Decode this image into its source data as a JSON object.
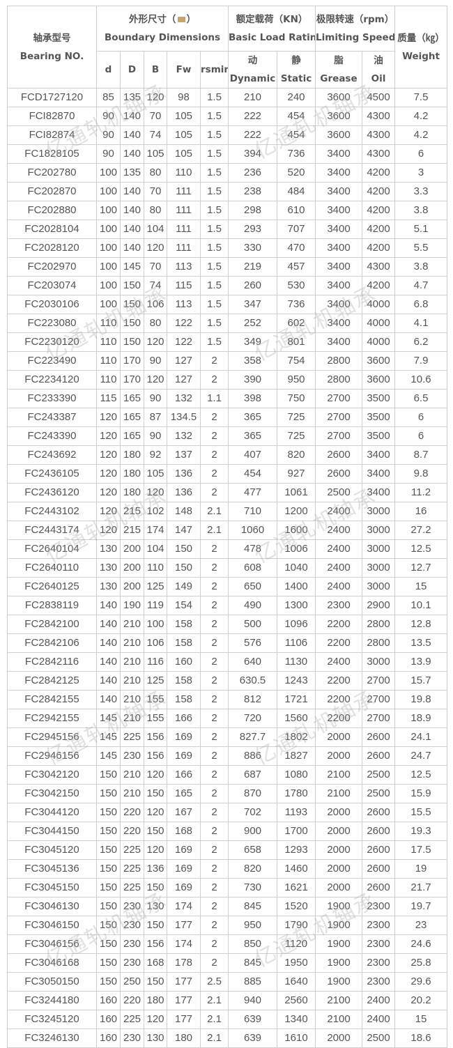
{
  "header": {
    "bearing_cn": "轴承型号",
    "bearing_en": "Bearing NO.",
    "dims_cn": "外形尺寸（",
    "dims_unit": "mm",
    "dims_close": "）",
    "dims_en": "Boundary Dimensions",
    "load_cn": "额定载荷（KN）",
    "load_en": "Basic Load Rating",
    "speed_cn": "极限转速（rpm）",
    "speed_en": "Limiting Speed",
    "weight_cn": "质量（㎏）",
    "weight_en": "Weight",
    "sub": {
      "d": "d",
      "D": "D",
      "B": "B",
      "Fw": "Fw",
      "rsmin": "rsmin",
      "dynamic_cn": "动",
      "dynamic_en": "Dynamic",
      "static_cn": "静",
      "static_en": "Static",
      "grease_cn": "脂",
      "grease_en": "Grease",
      "oil_cn": "油",
      "oil_en": "Oil"
    }
  },
  "rows": [
    [
      "FCD1727120",
      "85",
      "135",
      "120",
      "98",
      "1.5",
      "210",
      "240",
      "3600",
      "4500",
      "7.5"
    ],
    [
      "FCI82870",
      "90",
      "140",
      "70",
      "105",
      "1.5",
      "222",
      "454",
      "3600",
      "4300",
      "4.2"
    ],
    [
      "FCI82874",
      "90",
      "140",
      "74",
      "105",
      "1.5",
      "222",
      "454",
      "3600",
      "4300",
      "4.2"
    ],
    [
      "FC1828105",
      "90",
      "140",
      "105",
      "105",
      "1.5",
      "394",
      "736",
      "3400",
      "4300",
      "6"
    ],
    [
      "FC202780",
      "100",
      "135",
      "80",
      "110",
      "1.5",
      "236",
      "520",
      "3400",
      "4200",
      "3"
    ],
    [
      "FC202870",
      "100",
      "140",
      "70",
      "111",
      "1.5",
      "238",
      "484",
      "3400",
      "4200",
      "3.3"
    ],
    [
      "FC202880",
      "100",
      "140",
      "80",
      "111",
      "1.5",
      "298",
      "610",
      "3400",
      "4200",
      "3.8"
    ],
    [
      "FC2028104",
      "100",
      "140",
      "104",
      "111",
      "1.5",
      "293",
      "707",
      "3400",
      "4200",
      "5.1"
    ],
    [
      "FC2028120",
      "100",
      "140",
      "120",
      "111",
      "1.5",
      "330",
      "470",
      "3400",
      "4200",
      "5.5"
    ],
    [
      "FC202970",
      "100",
      "145",
      "70",
      "113",
      "1.5",
      "219",
      "457",
      "3400",
      "4300",
      "3.8"
    ],
    [
      "FC203074",
      "100",
      "150",
      "74",
      "115",
      "1.5",
      "260",
      "530",
      "3400",
      "4200",
      "4.7"
    ],
    [
      "FC2030106",
      "100",
      "150",
      "106",
      "113",
      "1.5",
      "347",
      "736",
      "3400",
      "4000",
      "6.8"
    ],
    [
      "FC223080",
      "110",
      "150",
      "80",
      "122",
      "1.5",
      "252",
      "602",
      "3400",
      "4000",
      "4.1"
    ],
    [
      "FC2230120",
      "110",
      "150",
      "120",
      "122",
      "1.5",
      "349",
      "801",
      "3400",
      "4000",
      "6.2"
    ],
    [
      "FC223490",
      "110",
      "170",
      "90",
      "127",
      "2",
      "358",
      "754",
      "2800",
      "3600",
      "7.9"
    ],
    [
      "FC2234120",
      "110",
      "170",
      "120",
      "127",
      "2",
      "390",
      "950",
      "2800",
      "3600",
      "10.6"
    ],
    [
      "FC233390",
      "115",
      "165",
      "90",
      "132",
      "1.1",
      "398",
      "750",
      "2700",
      "3500",
      "6.5"
    ],
    [
      "FC243387",
      "120",
      "165",
      "87",
      "134.5",
      "2",
      "365",
      "725",
      "2700",
      "3500",
      "6"
    ],
    [
      "FC243390",
      "120",
      "165",
      "90",
      "132",
      "2",
      "365",
      "725",
      "2700",
      "3500",
      "6"
    ],
    [
      "FC243692",
      "120",
      "180",
      "92",
      "137",
      "2",
      "407",
      "820",
      "2600",
      "3400",
      "8.7"
    ],
    [
      "FC2436105",
      "120",
      "180",
      "105",
      "136",
      "2",
      "454",
      "927",
      "2600",
      "3400",
      "9.8"
    ],
    [
      "FC2436120",
      "120",
      "180",
      "120",
      "136",
      "2",
      "477",
      "1061",
      "2500",
      "3400",
      "11.2"
    ],
    [
      "FC2443102",
      "120",
      "215",
      "102",
      "148",
      "2.1",
      "710",
      "1200",
      "2400",
      "3000",
      "16"
    ],
    [
      "FC2443174",
      "120",
      "215",
      "174",
      "147",
      "2.1",
      "1060",
      "1600",
      "2400",
      "3000",
      "27.2"
    ],
    [
      "FC2640104",
      "130",
      "200",
      "104",
      "150",
      "2",
      "478",
      "1006",
      "2400",
      "3000",
      "12.5"
    ],
    [
      "FC2640110",
      "130",
      "200",
      "110",
      "150",
      "2",
      "608",
      "1040",
      "2400",
      "3000",
      "12.7"
    ],
    [
      "FC2640125",
      "130",
      "200",
      "125",
      "149",
      "2",
      "650",
      "1400",
      "2400",
      "3000",
      "15"
    ],
    [
      "FC2838119",
      "140",
      "190",
      "119",
      "154",
      "2",
      "490",
      "1300",
      "2300",
      "2900",
      "10.1"
    ],
    [
      "FC2842100",
      "140",
      "210",
      "100",
      "158",
      "2",
      "500",
      "1096",
      "2200",
      "2800",
      "12.8"
    ],
    [
      "FC2842106",
      "140",
      "210",
      "106",
      "158",
      "2",
      "576",
      "1106",
      "2200",
      "2800",
      "13.5"
    ],
    [
      "FC2842116",
      "140",
      "210",
      "116",
      "160",
      "2",
      "640",
      "1130",
      "2400",
      "3000",
      "13.9"
    ],
    [
      "FC2842125",
      "140",
      "210",
      "125",
      "158",
      "2",
      "630.5",
      "1243",
      "2200",
      "2700",
      "15.7"
    ],
    [
      "FC2842155",
      "140",
      "210",
      "155",
      "158",
      "2",
      "812",
      "1721",
      "2200",
      "2700",
      "19.8"
    ],
    [
      "FC2942155",
      "145",
      "210",
      "155",
      "166",
      "2",
      "720",
      "1560",
      "2200",
      "2700",
      "18.9"
    ],
    [
      "FC2945156",
      "145",
      "225",
      "156",
      "169",
      "2",
      "827.7",
      "1802",
      "2000",
      "2600",
      "24.1"
    ],
    [
      "FC2946156",
      "145",
      "230",
      "156",
      "169",
      "2",
      "886",
      "1827",
      "2000",
      "2600",
      "24.7"
    ],
    [
      "FC3042120",
      "150",
      "210",
      "120",
      "166",
      "2",
      "687",
      "1080",
      "2100",
      "2500",
      "12.5"
    ],
    [
      "FC3042150",
      "150",
      "210",
      "150",
      "165",
      "2",
      "870",
      "1780",
      "2100",
      "2500",
      "15.9"
    ],
    [
      "FC3044120",
      "150",
      "220",
      "120",
      "167",
      "2",
      "702",
      "1193",
      "2000",
      "2600",
      "15.5"
    ],
    [
      "FC3044150",
      "150",
      "220",
      "150",
      "168",
      "2",
      "900",
      "1700",
      "2000",
      "2600",
      "19.3"
    ],
    [
      "FC3045120",
      "150",
      "225",
      "120",
      "169",
      "2",
      "658",
      "1293",
      "2000",
      "2600",
      "17.5"
    ],
    [
      "FC3045136",
      "150",
      "225",
      "136",
      "169",
      "2",
      "820",
      "1460",
      "2000",
      "2600",
      "19"
    ],
    [
      "FC3045150",
      "150",
      "225",
      "150",
      "169",
      "2",
      "730",
      "1621",
      "2000",
      "2600",
      "21.7"
    ],
    [
      "FC3046130",
      "150",
      "230",
      "130",
      "174",
      "2",
      "845",
      "1520",
      "1900",
      "2300",
      "19.7"
    ],
    [
      "FC3046150",
      "150",
      "230",
      "150",
      "177",
      "2",
      "950",
      "1790",
      "1900",
      "2300",
      "23"
    ],
    [
      "FC3046156",
      "150",
      "230",
      "156",
      "174",
      "2",
      "850",
      "1120",
      "1900",
      "2300",
      "24.6"
    ],
    [
      "FC3046168",
      "150",
      "230",
      "168",
      "178",
      "2",
      "845",
      "1950",
      "1900",
      "2300",
      "25.8"
    ],
    [
      "FC3050150",
      "150",
      "250",
      "150",
      "177",
      "2.5",
      "885",
      "1640",
      "1900",
      "2300",
      "29.6"
    ],
    [
      "FC3244180",
      "160",
      "220",
      "180",
      "177",
      "2.1",
      "940",
      "2560",
      "2100",
      "2400",
      "20.2"
    ],
    [
      "FC3245120",
      "160",
      "225",
      "120",
      "177",
      "2.1",
      "639",
      "1340",
      "2100",
      "2400",
      "15"
    ],
    [
      "FC3246130",
      "160",
      "230",
      "130",
      "180",
      "2.1",
      "639",
      "1610",
      "2000",
      "2500",
      "18.6"
    ]
  ],
  "watermark": "亿通轧机轴承",
  "colors": {
    "border": "#d0d0d0",
    "text": "#555555",
    "watermark": "#aaaaaa"
  }
}
